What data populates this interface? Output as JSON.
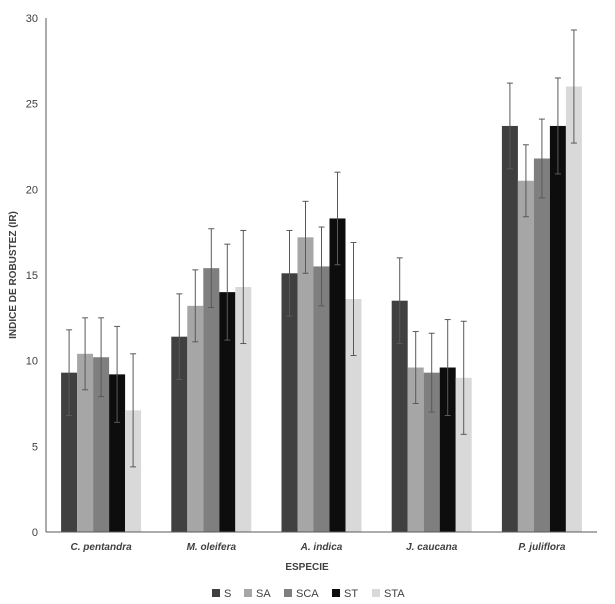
{
  "chart_data": {
    "type": "bar",
    "xlabel": "ESPECIE",
    "ylabel": "INDICE DE ROBUSTEZ (IR)",
    "ylim": [
      0,
      30
    ],
    "yticks": [
      0,
      5,
      10,
      15,
      20,
      25,
      30
    ],
    "grid": false,
    "legend_position": "bottom",
    "categories": [
      "C. pentandra",
      "M. oleifera",
      "A. indica",
      "J. caucana",
      "P. juliflora"
    ],
    "series": [
      {
        "name": "S",
        "color": "#404040",
        "values": [
          9.3,
          11.4,
          15.1,
          13.5,
          23.7
        ],
        "errors": [
          2.5,
          2.5,
          2.5,
          2.5,
          2.5
        ]
      },
      {
        "name": "SA",
        "color": "#a6a6a6",
        "values": [
          10.4,
          13.2,
          17.2,
          9.6,
          20.5
        ],
        "errors": [
          2.1,
          2.1,
          2.1,
          2.1,
          2.1
        ]
      },
      {
        "name": "SCA",
        "color": "#7f7f7f",
        "values": [
          10.2,
          15.4,
          15.5,
          9.3,
          21.8
        ],
        "errors": [
          2.3,
          2.3,
          2.3,
          2.3,
          2.3
        ]
      },
      {
        "name": "ST",
        "color": "#0d0d0d",
        "values": [
          9.2,
          14.0,
          18.3,
          9.6,
          23.7
        ],
        "errors": [
          2.8,
          2.8,
          2.7,
          2.8,
          2.8
        ]
      },
      {
        "name": "STA",
        "color": "#d9d9d9",
        "values": [
          7.1,
          14.3,
          13.6,
          9.0,
          26.0
        ],
        "errors": [
          3.3,
          3.3,
          3.3,
          3.3,
          3.3
        ]
      }
    ]
  }
}
